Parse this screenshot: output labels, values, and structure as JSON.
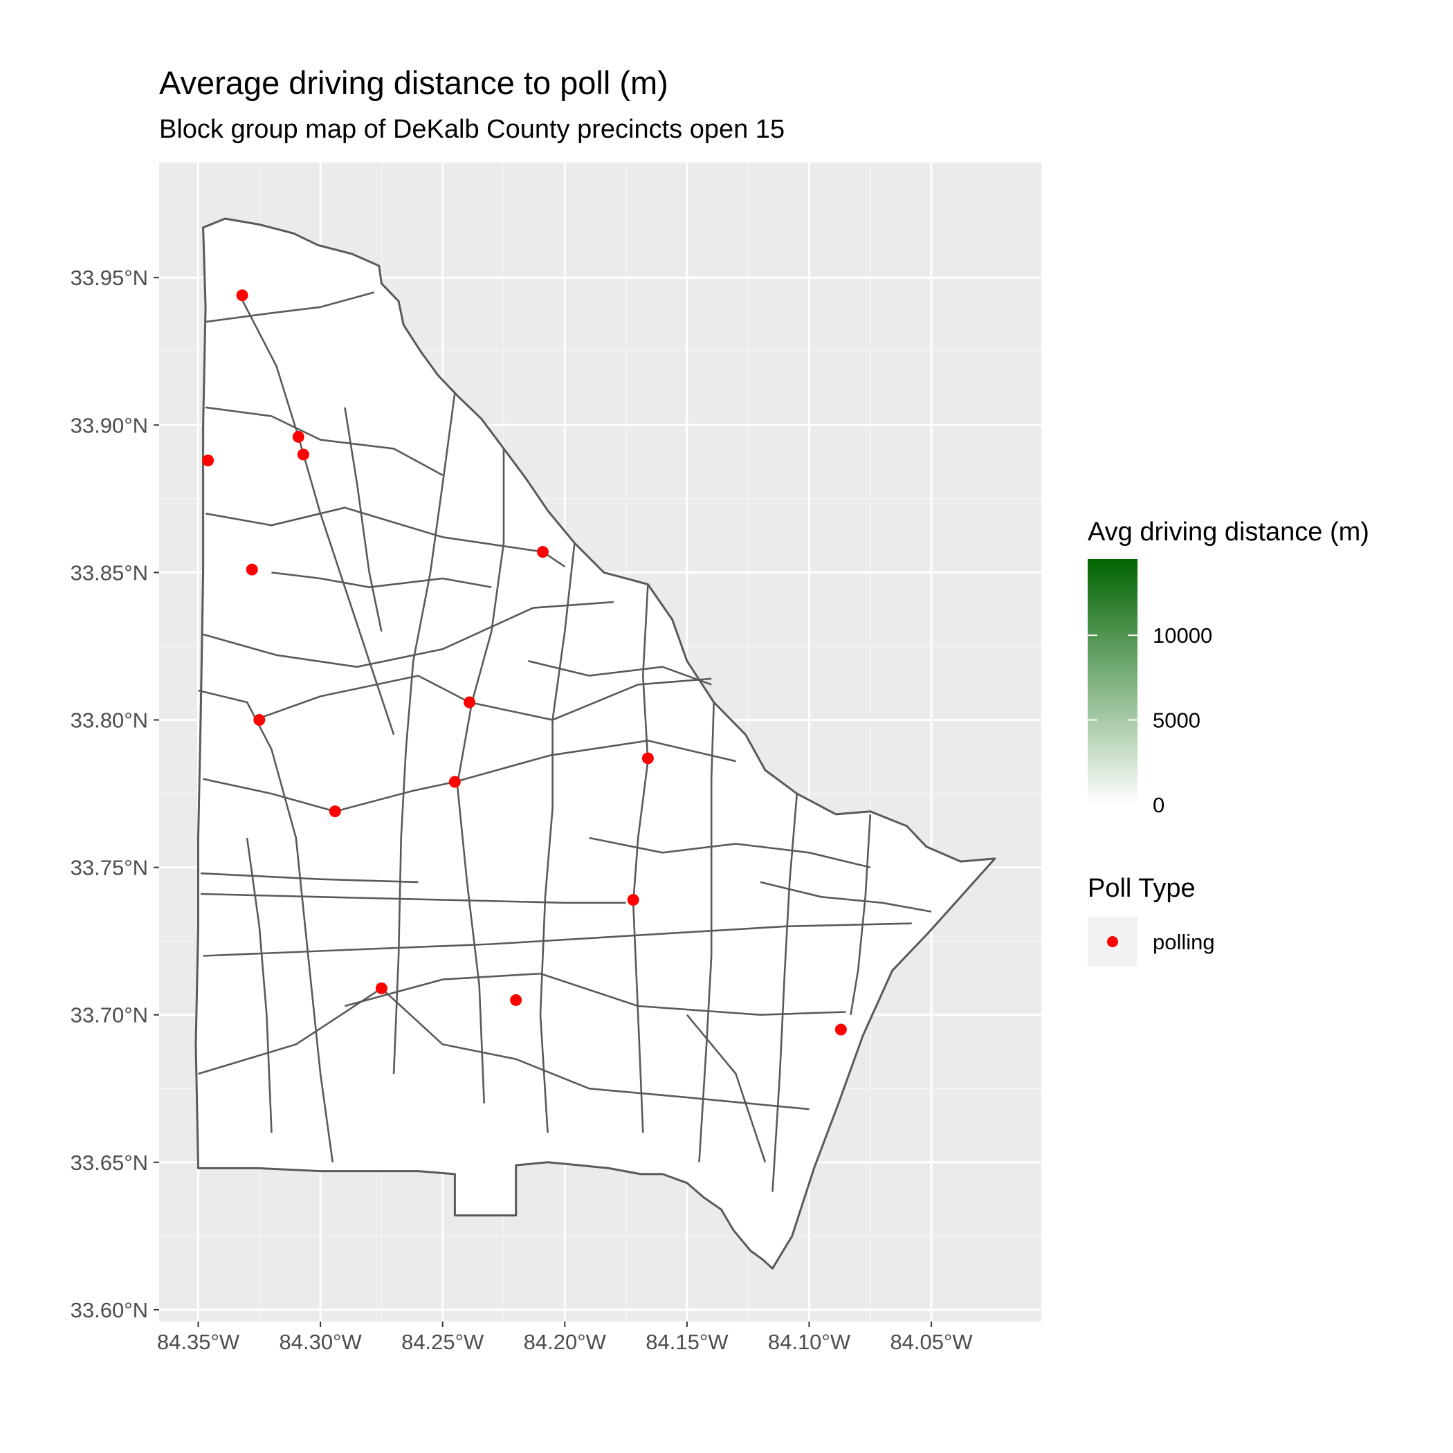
{
  "chart_data": {
    "type": "choropleth-map",
    "title": "Average driving distance to poll (m)",
    "subtitle": "Block group map of DeKalb County precincts open 15",
    "x_axis": {
      "range": [
        -84.366,
        -84.005
      ],
      "ticks": [
        {
          "value": -84.35,
          "label": "84.35°W"
        },
        {
          "value": -84.3,
          "label": "84.30°W"
        },
        {
          "value": -84.25,
          "label": "84.25°W"
        },
        {
          "value": -84.2,
          "label": "84.20°W"
        },
        {
          "value": -84.15,
          "label": "84.15°W"
        },
        {
          "value": -84.1,
          "label": "84.10°W"
        },
        {
          "value": -84.05,
          "label": "84.05°W"
        }
      ]
    },
    "y_axis": {
      "range": [
        33.596,
        33.989
      ],
      "ticks": [
        {
          "value": 33.6,
          "label": "33.60°N"
        },
        {
          "value": 33.65,
          "label": "33.65°N"
        },
        {
          "value": 33.7,
          "label": "33.70°N"
        },
        {
          "value": 33.75,
          "label": "33.75°N"
        },
        {
          "value": 33.8,
          "label": "33.80°N"
        },
        {
          "value": 33.85,
          "label": "33.85°N"
        },
        {
          "value": 33.9,
          "label": "33.90°N"
        },
        {
          "value": 33.95,
          "label": "33.95°N"
        }
      ]
    },
    "grid": true,
    "fill_legend": {
      "title": "Avg driving distance (m)",
      "low_color": "#ffffff",
      "high_color": "#006400",
      "min": 0,
      "max": 14500,
      "ticks": [
        {
          "value": 0,
          "label": "0"
        },
        {
          "value": 5000,
          "label": "5000"
        },
        {
          "value": 10000,
          "label": "10000"
        }
      ]
    },
    "point_legend": {
      "title": "Poll Type",
      "entries": [
        {
          "label": "polling",
          "color": "#ff0000"
        }
      ]
    },
    "county_outline": [
      [
        -84.348,
        33.967
      ],
      [
        -84.339,
        33.97
      ],
      [
        -84.325,
        33.968
      ],
      [
        -84.311,
        33.965
      ],
      [
        -84.301,
        33.961
      ],
      [
        -84.287,
        33.958
      ],
      [
        -84.276,
        33.954
      ],
      [
        -84.275,
        33.948
      ],
      [
        -84.268,
        33.942
      ],
      [
        -84.266,
        33.934
      ],
      [
        -84.259,
        33.925
      ],
      [
        -84.252,
        33.917
      ],
      [
        -84.244,
        33.91
      ],
      [
        -84.234,
        33.902
      ],
      [
        -84.225,
        33.892
      ],
      [
        -84.216,
        33.882
      ],
      [
        -84.207,
        33.871
      ],
      [
        -84.196,
        33.86
      ],
      [
        -84.184,
        33.85
      ],
      [
        -84.166,
        33.846
      ],
      [
        -84.156,
        33.834
      ],
      [
        -84.15,
        33.82
      ],
      [
        -84.139,
        33.806
      ],
      [
        -84.126,
        33.795
      ],
      [
        -84.118,
        33.783
      ],
      [
        -84.105,
        33.775
      ],
      [
        -84.089,
        33.768
      ],
      [
        -84.075,
        33.769
      ],
      [
        -84.06,
        33.764
      ],
      [
        -84.052,
        33.757
      ],
      [
        -84.038,
        33.752
      ],
      [
        -84.024,
        33.753
      ],
      [
        -84.051,
        33.728
      ],
      [
        -84.066,
        33.715
      ],
      [
        -84.078,
        33.693
      ],
      [
        -84.088,
        33.67
      ],
      [
        -84.098,
        33.648
      ],
      [
        -84.107,
        33.625
      ],
      [
        -84.115,
        33.614
      ],
      [
        -84.119,
        33.617
      ],
      [
        -84.124,
        33.62
      ],
      [
        -84.131,
        33.627
      ],
      [
        -84.136,
        33.634
      ],
      [
        -84.143,
        33.638
      ],
      [
        -84.15,
        33.643
      ],
      [
        -84.16,
        33.646
      ],
      [
        -84.169,
        33.646
      ],
      [
        -84.182,
        33.648
      ],
      [
        -84.194,
        33.649
      ],
      [
        -84.207,
        33.65
      ],
      [
        -84.22,
        33.649
      ],
      [
        -84.22,
        33.632
      ],
      [
        -84.245,
        33.632
      ],
      [
        -84.245,
        33.646
      ],
      [
        -84.26,
        33.647
      ],
      [
        -84.28,
        33.647
      ],
      [
        -84.3,
        33.647
      ],
      [
        -84.325,
        33.648
      ],
      [
        -84.35,
        33.648
      ],
      [
        -84.351,
        33.69
      ],
      [
        -84.35,
        33.73
      ],
      [
        -84.35,
        33.76
      ],
      [
        -84.349,
        33.8
      ],
      [
        -84.348,
        33.85
      ],
      [
        -84.348,
        33.9
      ],
      [
        -84.347,
        33.94
      ]
    ],
    "internal_boundaries": [
      [
        [
          -84.348,
          33.72
        ],
        [
          -84.29,
          33.722
        ],
        [
          -84.23,
          33.724
        ],
        [
          -84.17,
          33.727
        ],
        [
          -84.11,
          33.73
        ],
        [
          -84.058,
          33.731
        ]
      ],
      [
        [
          -84.349,
          33.741
        ],
        [
          -84.3,
          33.74
        ],
        [
          -84.25,
          33.739
        ],
        [
          -84.2,
          33.738
        ],
        [
          -84.175,
          33.738
        ]
      ],
      [
        [
          -84.349,
          33.748
        ],
        [
          -84.3,
          33.746
        ],
        [
          -84.26,
          33.745
        ]
      ],
      [
        [
          -84.29,
          33.703
        ],
        [
          -84.25,
          33.712
        ],
        [
          -84.21,
          33.714
        ],
        [
          -84.17,
          33.703
        ],
        [
          -84.12,
          33.7
        ],
        [
          -84.085,
          33.701
        ]
      ],
      [
        [
          -84.348,
          33.78
        ],
        [
          -84.32,
          33.775
        ],
        [
          -84.294,
          33.769
        ],
        [
          -84.262,
          33.776
        ],
        [
          -84.245,
          33.779
        ],
        [
          -84.206,
          33.788
        ],
        [
          -84.166,
          33.793
        ],
        [
          -84.13,
          33.786
        ]
      ],
      [
        [
          -84.348,
          33.829
        ],
        [
          -84.318,
          33.822
        ],
        [
          -84.285,
          33.818
        ],
        [
          -84.25,
          33.824
        ],
        [
          -84.213,
          33.838
        ],
        [
          -84.18,
          33.84
        ]
      ],
      [
        [
          -84.327,
          33.8
        ],
        [
          -84.3,
          33.808
        ],
        [
          -84.26,
          33.815
        ],
        [
          -84.239,
          33.806
        ],
        [
          -84.205,
          33.8
        ],
        [
          -84.17,
          33.812
        ],
        [
          -84.14,
          33.814
        ]
      ],
      [
        [
          -84.347,
          33.87
        ],
        [
          -84.32,
          33.866
        ],
        [
          -84.29,
          33.872
        ],
        [
          -84.25,
          33.862
        ],
        [
          -84.209,
          33.857
        ],
        [
          -84.2,
          33.852
        ]
      ],
      [
        [
          -84.347,
          33.906
        ],
        [
          -84.32,
          33.903
        ],
        [
          -84.3,
          33.895
        ],
        [
          -84.27,
          33.892
        ],
        [
          -84.25,
          33.883
        ]
      ],
      [
        [
          -84.347,
          33.935
        ],
        [
          -84.32,
          33.938
        ],
        [
          -84.3,
          33.94
        ],
        [
          -84.278,
          33.945
        ]
      ],
      [
        [
          -84.333,
          33.944
        ],
        [
          -84.318,
          33.92
        ],
        [
          -84.309,
          33.896
        ],
        [
          -84.3,
          33.87
        ],
        [
          -84.29,
          33.845
        ],
        [
          -84.28,
          33.82
        ],
        [
          -84.27,
          33.795
        ]
      ],
      [
        [
          -84.245,
          33.911
        ],
        [
          -84.25,
          33.88
        ],
        [
          -84.255,
          33.85
        ],
        [
          -84.262,
          33.82
        ],
        [
          -84.265,
          33.79
        ],
        [
          -84.267,
          33.76
        ],
        [
          -84.268,
          33.72
        ],
        [
          -84.27,
          33.68
        ]
      ],
      [
        [
          -84.225,
          33.892
        ],
        [
          -84.225,
          33.86
        ],
        [
          -84.23,
          33.83
        ],
        [
          -84.238,
          33.806
        ],
        [
          -84.244,
          33.778
        ],
        [
          -84.24,
          33.745
        ],
        [
          -84.235,
          33.71
        ],
        [
          -84.233,
          33.67
        ]
      ],
      [
        [
          -84.196,
          33.86
        ],
        [
          -84.2,
          33.83
        ],
        [
          -84.205,
          33.8
        ],
        [
          -84.205,
          33.77
        ],
        [
          -84.208,
          33.74
        ],
        [
          -84.21,
          33.7
        ],
        [
          -84.207,
          33.66
        ]
      ],
      [
        [
          -84.166,
          33.846
        ],
        [
          -84.168,
          33.815
        ],
        [
          -84.166,
          33.786
        ],
        [
          -84.17,
          33.76
        ],
        [
          -84.172,
          33.738
        ],
        [
          -84.17,
          33.7
        ],
        [
          -84.168,
          33.66
        ]
      ],
      [
        [
          -84.139,
          33.806
        ],
        [
          -84.14,
          33.78
        ],
        [
          -84.14,
          33.75
        ],
        [
          -84.14,
          33.72
        ],
        [
          -84.142,
          33.69
        ],
        [
          -84.145,
          33.65
        ]
      ],
      [
        [
          -84.105,
          33.775
        ],
        [
          -84.108,
          33.745
        ],
        [
          -84.11,
          33.715
        ],
        [
          -84.112,
          33.68
        ],
        [
          -84.115,
          33.64
        ]
      ],
      [
        [
          -84.075,
          33.768
        ],
        [
          -84.077,
          33.74
        ],
        [
          -84.08,
          33.715
        ],
        [
          -84.083,
          33.7
        ]
      ],
      [
        [
          -84.35,
          33.68
        ],
        [
          -84.31,
          33.69
        ],
        [
          -84.275,
          33.709
        ],
        [
          -84.25,
          33.69
        ],
        [
          -84.22,
          33.685
        ],
        [
          -84.19,
          33.675
        ],
        [
          -84.15,
          33.672
        ],
        [
          -84.1,
          33.668
        ]
      ],
      [
        [
          -84.35,
          33.81
        ],
        [
          -84.33,
          33.806
        ],
        [
          -84.32,
          33.79
        ],
        [
          -84.31,
          33.76
        ],
        [
          -84.305,
          33.72
        ],
        [
          -84.3,
          33.68
        ],
        [
          -84.295,
          33.65
        ]
      ],
      [
        [
          -84.33,
          33.76
        ],
        [
          -84.325,
          33.73
        ],
        [
          -84.322,
          33.7
        ],
        [
          -84.32,
          33.66
        ]
      ],
      [
        [
          -84.29,
          33.906
        ],
        [
          -84.285,
          33.88
        ],
        [
          -84.28,
          33.85
        ],
        [
          -84.275,
          33.83
        ]
      ],
      [
        [
          -84.32,
          33.85
        ],
        [
          -84.3,
          33.848
        ],
        [
          -84.28,
          33.845
        ],
        [
          -84.25,
          33.848
        ],
        [
          -84.23,
          33.845
        ]
      ],
      [
        [
          -84.215,
          33.82
        ],
        [
          -84.19,
          33.815
        ],
        [
          -84.16,
          33.818
        ],
        [
          -84.14,
          33.812
        ]
      ],
      [
        [
          -84.19,
          33.76
        ],
        [
          -84.16,
          33.755
        ],
        [
          -84.13,
          33.758
        ],
        [
          -84.1,
          33.755
        ],
        [
          -84.075,
          33.75
        ]
      ],
      [
        [
          -84.12,
          33.745
        ],
        [
          -84.095,
          33.74
        ],
        [
          -84.07,
          33.738
        ],
        [
          -84.05,
          33.735
        ]
      ],
      [
        [
          -84.15,
          33.7
        ],
        [
          -84.13,
          33.68
        ],
        [
          -84.118,
          33.65
        ]
      ]
    ],
    "polling_places": [
      [
        -84.332,
        33.944
      ],
      [
        -84.309,
        33.896
      ],
      [
        -84.307,
        33.89
      ],
      [
        -84.346,
        33.888
      ],
      [
        -84.209,
        33.857
      ],
      [
        -84.328,
        33.851
      ],
      [
        -84.239,
        33.806
      ],
      [
        -84.325,
        33.8
      ],
      [
        -84.166,
        33.787
      ],
      [
        -84.245,
        33.779
      ],
      [
        -84.294,
        33.769
      ],
      [
        -84.172,
        33.739
      ],
      [
        -84.275,
        33.709
      ],
      [
        -84.22,
        33.705
      ],
      [
        -84.087,
        33.695
      ]
    ]
  }
}
